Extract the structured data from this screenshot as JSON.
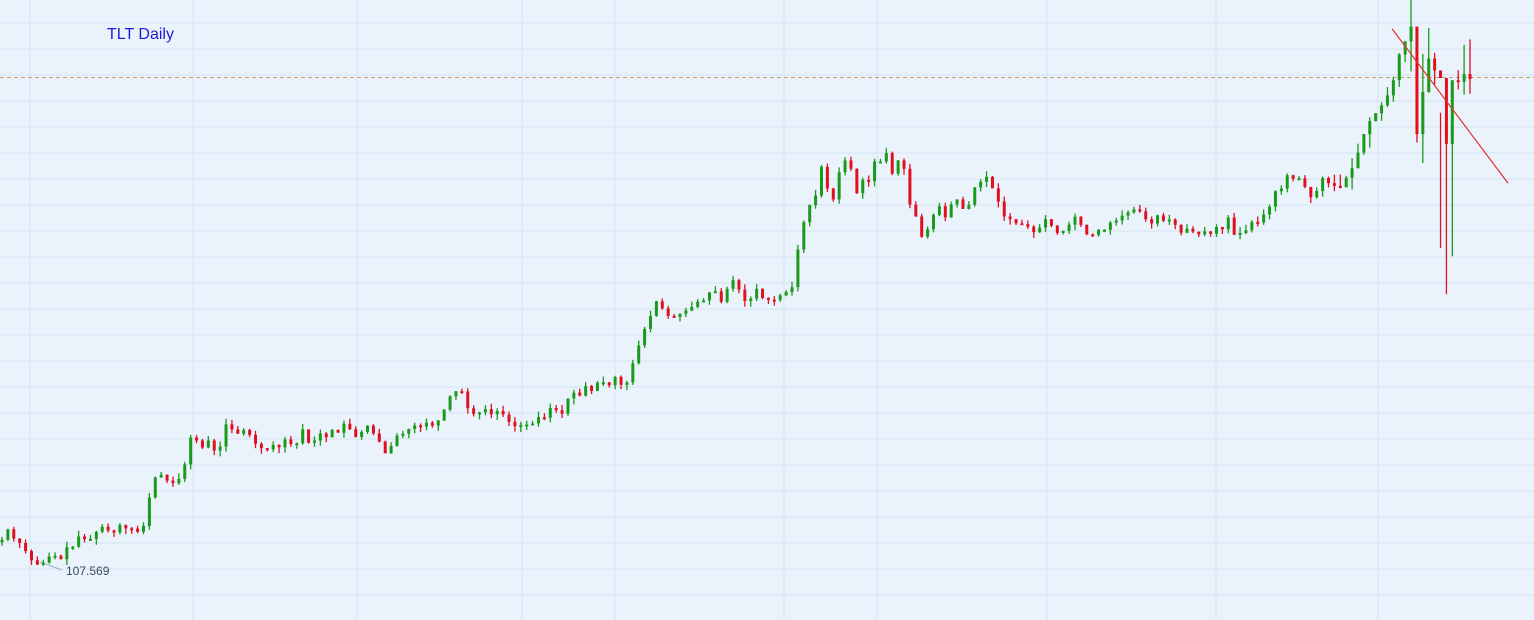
{
  "chart_data": {
    "type": "ohlc",
    "title": "TLT Daily",
    "ticker": "TLT",
    "interval": "Daily",
    "low_annotation": "107.569",
    "grid": true,
    "background": "#eaf3fc",
    "colors": {
      "up": "#1a9a1a",
      "down": "#e01020",
      "grid": "#d4e4f2",
      "reference_line": "#c8a070",
      "trendline": "#e23030",
      "title": "#1a1adc"
    },
    "reference_level": 125.6,
    "trendline": {
      "from": [
        1392,
        127.4
      ],
      "to": [
        1508,
        121.7
      ]
    },
    "bar_series_closes": [
      108.54,
      108.92,
      108.58,
      108.42,
      108.12,
      107.78,
      107.62,
      107.69,
      107.92,
      107.95,
      107.82,
      108.26,
      108.28,
      108.66,
      108.56,
      108.57,
      108.83,
      109.02,
      108.88,
      108.81,
      109.08,
      108.96,
      108.95,
      108.83,
      109.05,
      110.1,
      110.84,
      110.94,
      110.72,
      110.63,
      110.78,
      111.32,
      112.31,
      112.2,
      111.94,
      112.2,
      111.83,
      111.98,
      112.8,
      112.61,
      112.45,
      112.59,
      112.41,
      112.08,
      111.92,
      111.87,
      112.04,
      111.95,
      112.24,
      112.07,
      112.1,
      112.61,
      112.12,
      112.2,
      112.46,
      112.32,
      112.59,
      112.49,
      112.82,
      112.62,
      112.33,
      112.52,
      112.75,
      112.46,
      112.16,
      111.73,
      112.0,
      112.38,
      112.45,
      112.63,
      112.76,
      112.72,
      112.86,
      112.75,
      112.94,
      113.34,
      113.83,
      114.02,
      114.01,
      113.39,
      113.18,
      113.24,
      113.36,
      113.17,
      113.29,
      113.16,
      112.89,
      112.73,
      112.77,
      112.79,
      112.83,
      113.06,
      113.04,
      113.4,
      113.32,
      113.19,
      113.75,
      113.97,
      113.86,
      114.21,
      114.03,
      114.33,
      114.35,
      114.24,
      114.55,
      114.26,
      114.34,
      115.05,
      115.71,
      116.32,
      116.8,
      117.34,
      117.08,
      116.8,
      116.76,
      116.88,
      117.0,
      117.13,
      117.33,
      117.37,
      117.66,
      117.71,
      117.32,
      117.8,
      118.12,
      117.77,
      117.35,
      117.44,
      117.8,
      117.46,
      117.4,
      117.39,
      117.56,
      117.68,
      117.86,
      119.25,
      120.26,
      120.89,
      121.24,
      122.3,
      121.5,
      121.1,
      122.1,
      122.54,
      122.23,
      121.33,
      121.82,
      121.77,
      122.5,
      122.5,
      122.81,
      122.05,
      122.54,
      122.23,
      120.91,
      120.47,
      119.72,
      120.0,
      120.53,
      120.85,
      120.44,
      120.91,
      121.1,
      120.75,
      120.9,
      121.54,
      121.75,
      121.93,
      121.51,
      121.02,
      120.47,
      120.37,
      120.22,
      120.19,
      120.09,
      119.89,
      120.06,
      120.37,
      120.13,
      119.86,
      119.94,
      120.17,
      120.46,
      120.16,
      119.81,
      119.79,
      119.98,
      119.98,
      120.24,
      120.32,
      120.5,
      120.62,
      120.73,
      120.66,
      120.37,
      120.21,
      120.51,
      120.31,
      120.36,
      120.16,
      119.87,
      120.02,
      119.91,
      119.81,
      119.92,
      119.83,
      120.08,
      120.0,
      120.43,
      119.8,
      119.86,
      119.96,
      120.27,
      120.25,
      120.54,
      120.83,
      121.4,
      121.5,
      121.99,
      121.86,
      121.88,
      121.56,
      121.18,
      121.41,
      121.89,
      121.7,
      121.6,
      121.55,
      121.9,
      122.25,
      122.83,
      123.51,
      123.99,
      124.28,
      124.57,
      124.94,
      125.5,
      126.45,
      126.93,
      127.48,
      123.51,
      125.06,
      126.3,
      125.86,
      125.58,
      123.15,
      125.5,
      125.44,
      125.73,
      125.54
    ],
    "notes": "Daily OHLC bars of TLT, about 250 sessions, x index = bar order; y = price in dollars"
  }
}
